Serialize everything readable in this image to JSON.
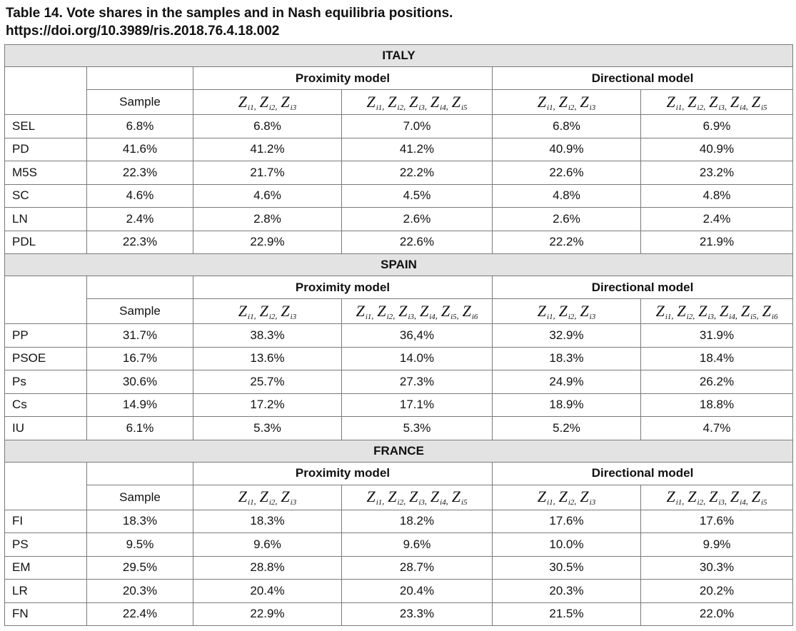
{
  "title_line1": "Table 14. Vote shares in the samples and in Nash equilibria positions.",
  "title_line2": "https://doi.org/10.3989/ris.2018.76.4.18.002",
  "headers": {
    "proximity": "Proximity model",
    "directional": "Directional model",
    "sample": "Sample"
  },
  "sections": [
    {
      "country": "ITALY",
      "cols": [
        {
          "subs": [
            "i1",
            "i2",
            "i3"
          ]
        },
        {
          "subs": [
            "i1",
            "i2",
            "i3",
            "i4",
            "i5"
          ]
        },
        {
          "subs": [
            "i1",
            "i2",
            "i3"
          ]
        },
        {
          "subs": [
            "i1",
            "i2",
            "i3",
            "i4",
            "i5"
          ]
        }
      ],
      "rows": [
        {
          "party": "SEL",
          "values": [
            "6.8%",
            "6.8%",
            "7.0%",
            "6.8%",
            "6.9%"
          ]
        },
        {
          "party": "PD",
          "values": [
            "41.6%",
            "41.2%",
            "41.2%",
            "40.9%",
            "40.9%"
          ]
        },
        {
          "party": "M5S",
          "values": [
            "22.3%",
            "21.7%",
            "22.2%",
            "22.6%",
            "23.2%"
          ]
        },
        {
          "party": "SC",
          "values": [
            "4.6%",
            "4.6%",
            "4.5%",
            "4.8%",
            "4.8%"
          ]
        },
        {
          "party": "LN",
          "values": [
            "2.4%",
            "2.8%",
            "2.6%",
            "2.6%",
            "2.4%"
          ]
        },
        {
          "party": "PDL",
          "values": [
            "22.3%",
            "22.9%",
            "22.6%",
            "22.2%",
            "21.9%"
          ]
        }
      ]
    },
    {
      "country": "SPAIN",
      "cols": [
        {
          "subs": [
            "i1",
            "i2",
            "i3"
          ]
        },
        {
          "subs": [
            "i1",
            "i2",
            "i3",
            "i4",
            "i5",
            "i6"
          ]
        },
        {
          "subs": [
            "i1",
            "i2",
            "i3"
          ]
        },
        {
          "subs": [
            "i1",
            "i2",
            "i3",
            "i4",
            "i5",
            "i6"
          ]
        }
      ],
      "rows": [
        {
          "party": "PP",
          "values": [
            "31.7%",
            "38.3%",
            "36,4%",
            "32.9%",
            "31.9%"
          ]
        },
        {
          "party": "PSOE",
          "values": [
            "16.7%",
            "13.6%",
            "14.0%",
            "18.3%",
            "18.4%"
          ]
        },
        {
          "party": "Ps",
          "values": [
            "30.6%",
            "25.7%",
            "27.3%",
            "24.9%",
            "26.2%"
          ]
        },
        {
          "party": "Cs",
          "values": [
            "14.9%",
            "17.2%",
            "17.1%",
            "18.9%",
            "18.8%"
          ]
        },
        {
          "party": "IU",
          "values": [
            "6.1%",
            "5.3%",
            "5.3%",
            "5.2%",
            "4.7%"
          ]
        }
      ]
    },
    {
      "country": "FRANCE",
      "cols": [
        {
          "subs": [
            "i1",
            "i2",
            "i3"
          ]
        },
        {
          "subs": [
            "i1",
            "i2",
            "i3",
            "i4",
            "i5"
          ]
        },
        {
          "subs": [
            "i1",
            "i2",
            "i3"
          ]
        },
        {
          "subs": [
            "i1",
            "i2",
            "i3",
            "i4",
            "i5"
          ]
        }
      ],
      "rows": [
        {
          "party": "FI",
          "values": [
            "18.3%",
            "18.3%",
            "18.2%",
            "17.6%",
            "17.6%"
          ]
        },
        {
          "party": "PS",
          "values": [
            "9.5%",
            "9.6%",
            "9.6%",
            "10.0%",
            "9.9%"
          ]
        },
        {
          "party": "EM",
          "values": [
            "29.5%",
            "28.8%",
            "28.7%",
            "30.5%",
            "30.3%"
          ]
        },
        {
          "party": "LR",
          "values": [
            "20.3%",
            "20.4%",
            "20.4%",
            "20.3%",
            "20.2%"
          ]
        },
        {
          "party": "FN",
          "values": [
            "22.4%",
            "22.9%",
            "23.3%",
            "21.5%",
            "22.0%"
          ]
        }
      ]
    }
  ]
}
